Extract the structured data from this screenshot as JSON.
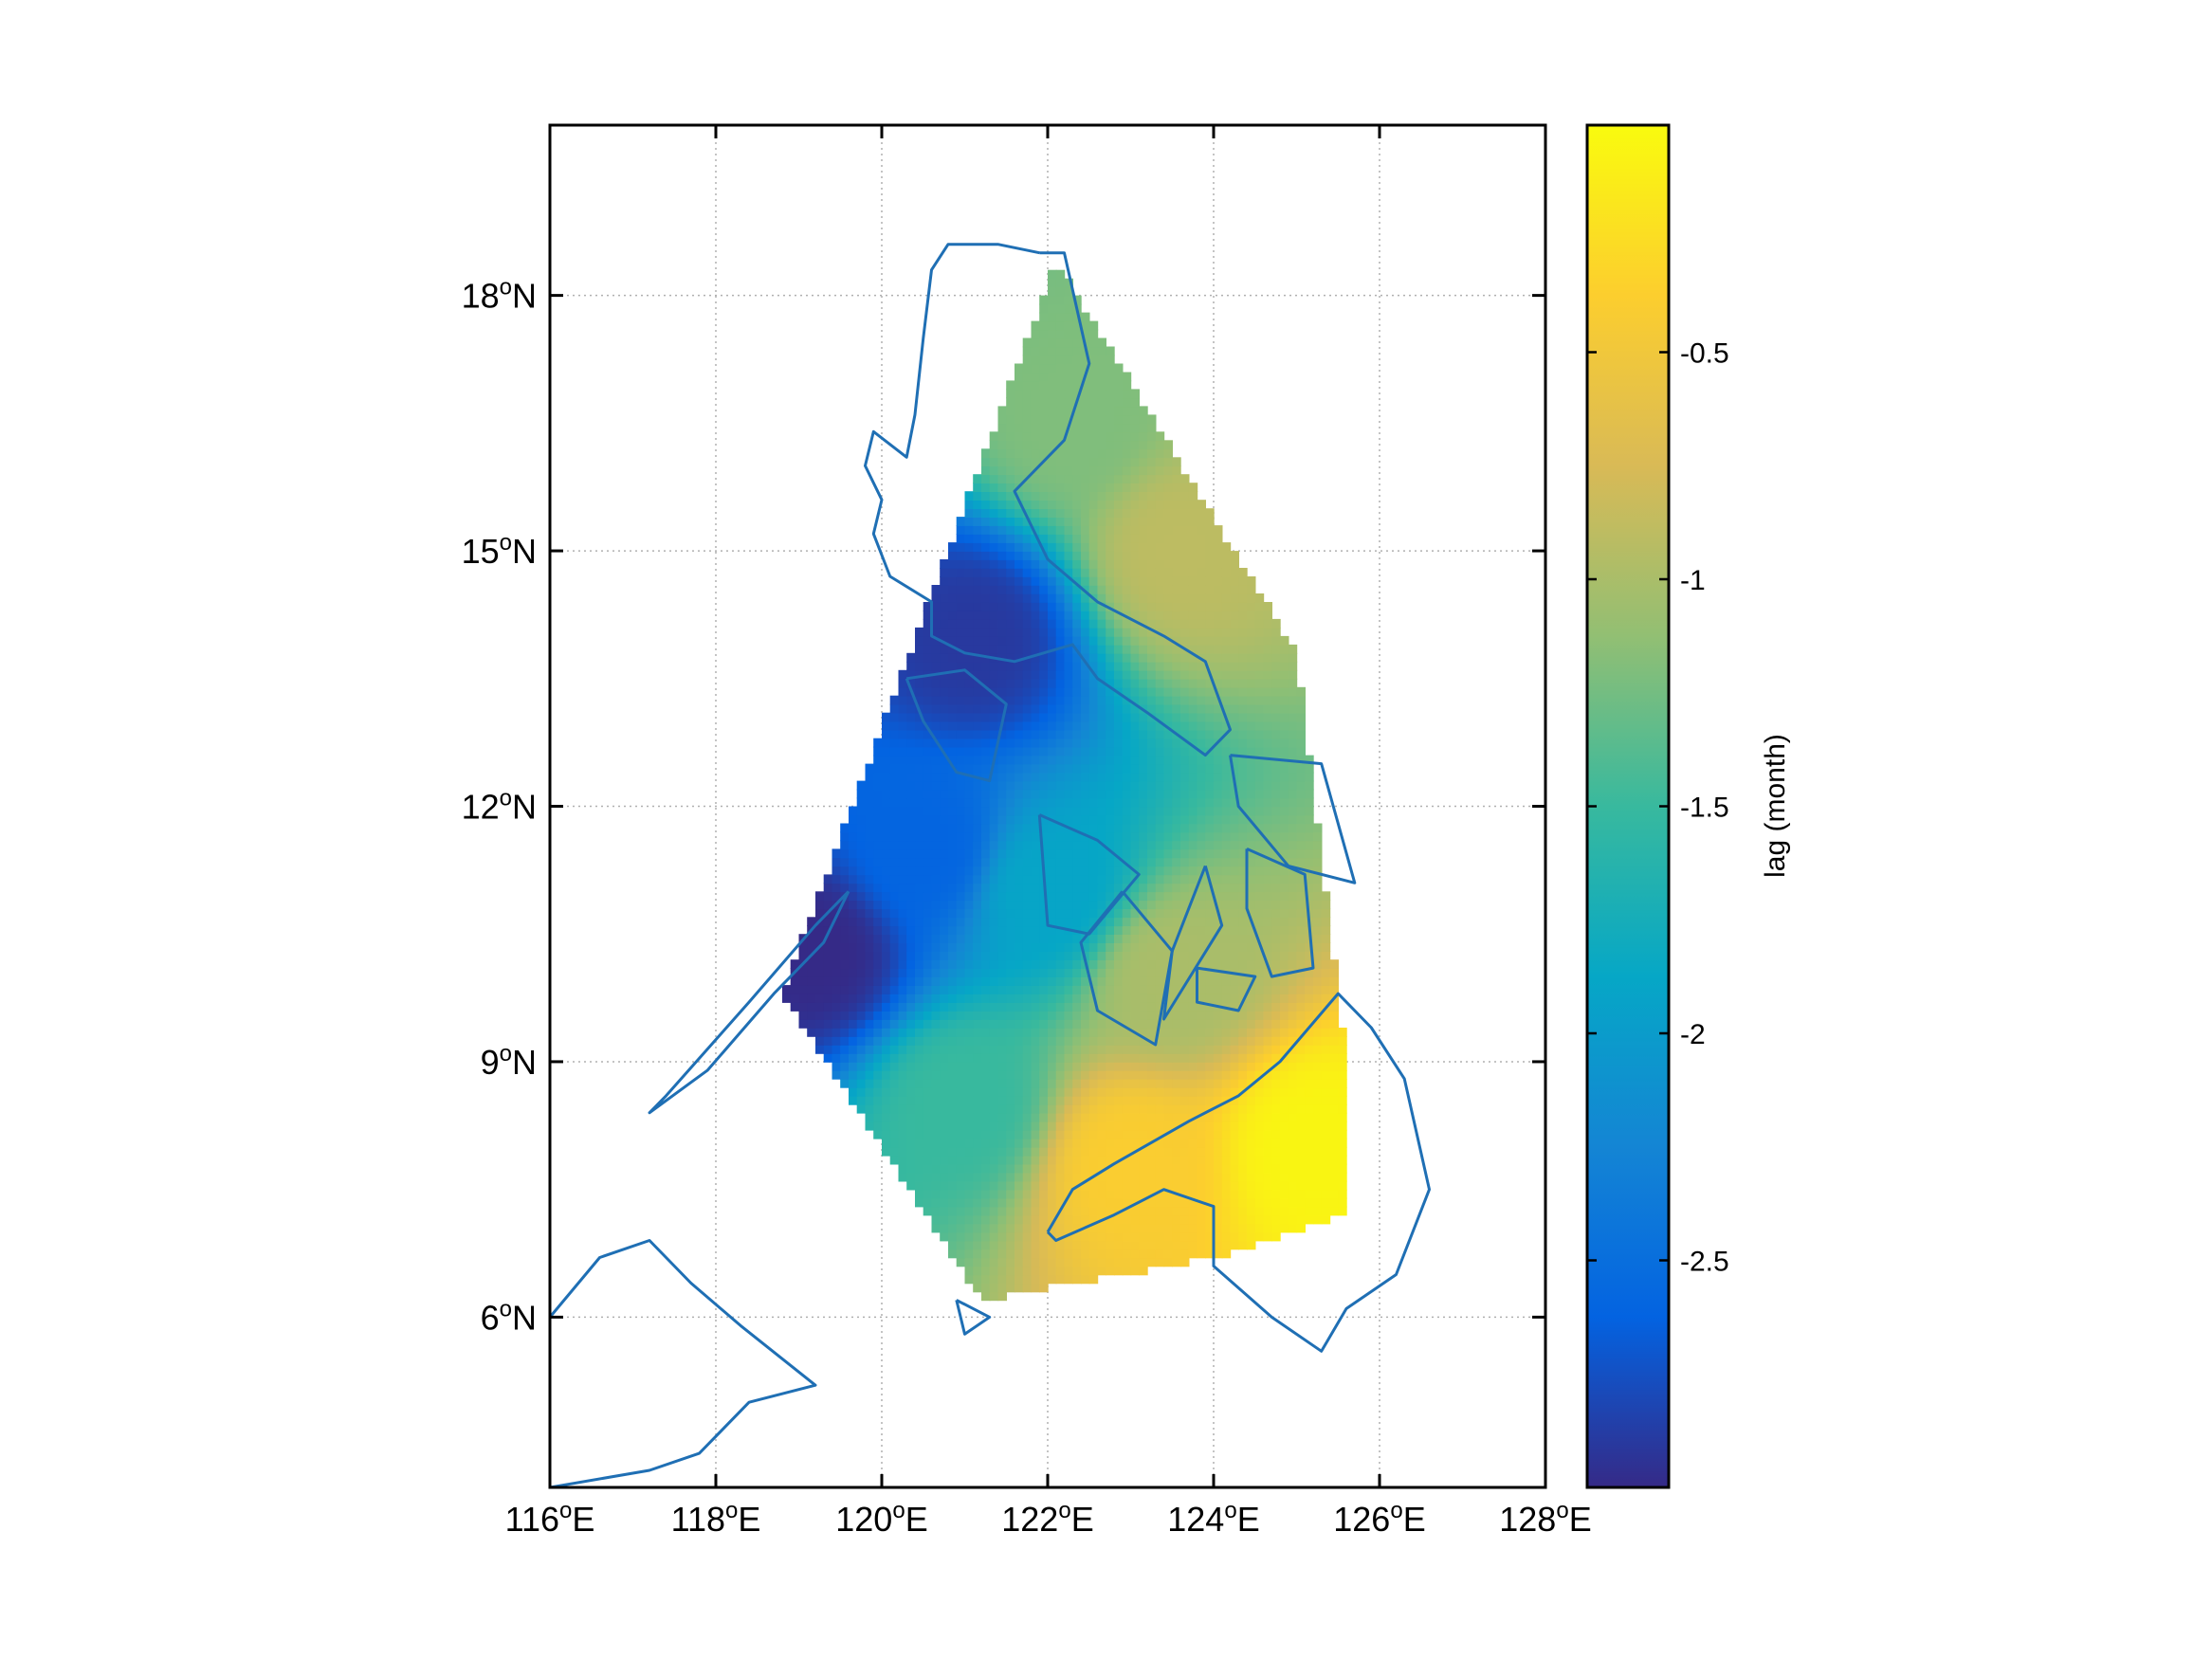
{
  "chart_data": {
    "type": "heatmap",
    "projection": "lat-lon map",
    "xlim": [
      116,
      128
    ],
    "ylim": [
      4,
      20
    ],
    "x_ticks": [
      116,
      118,
      120,
      122,
      124,
      126,
      128
    ],
    "y_ticks": [
      6,
      9,
      12,
      15,
      18
    ],
    "x_tick_labels": [
      {
        "num": "116",
        "suffix": "E"
      },
      {
        "num": "118",
        "suffix": "E"
      },
      {
        "num": "120",
        "suffix": "E"
      },
      {
        "num": "122",
        "suffix": "E"
      },
      {
        "num": "124",
        "suffix": "E"
      },
      {
        "num": "126",
        "suffix": "E"
      },
      {
        "num": "128",
        "suffix": "E"
      }
    ],
    "y_tick_labels": [
      {
        "num": "6",
        "suffix": "N"
      },
      {
        "num": "9",
        "suffix": "N"
      },
      {
        "num": "12",
        "suffix": "N"
      },
      {
        "num": "15",
        "suffix": "N"
      },
      {
        "num": "18",
        "suffix": "N"
      }
    ],
    "degree_symbol": "o",
    "grid": true,
    "field_region": [
      [
        122.1,
        18.4
      ],
      [
        125.0,
        13.8
      ],
      [
        125.6,
        9.0
      ],
      [
        125.6,
        7.2
      ],
      [
        124.0,
        6.7
      ],
      [
        121.2,
        6.2
      ],
      [
        118.8,
        9.8
      ],
      [
        122.1,
        18.4
      ]
    ],
    "field_samples": [
      {
        "lon": 121.1,
        "lat": 14.0,
        "lag": -2.9
      },
      {
        "lon": 119.2,
        "lat": 10.3,
        "lag": -3.0
      },
      {
        "lon": 120.5,
        "lat": 11.5,
        "lag": -2.6
      },
      {
        "lon": 122.3,
        "lat": 16.5,
        "lag": -1.2
      },
      {
        "lon": 123.6,
        "lat": 15.0,
        "lag": -0.9
      },
      {
        "lon": 122.0,
        "lat": 11.0,
        "lag": -1.9
      },
      {
        "lon": 121.0,
        "lat": 8.5,
        "lag": -1.5
      },
      {
        "lon": 123.5,
        "lat": 10.0,
        "lag": -1.0
      },
      {
        "lon": 123.0,
        "lat": 7.8,
        "lag": -0.4
      },
      {
        "lon": 125.2,
        "lat": 8.0,
        "lag": -0.05
      }
    ],
    "colorbar": {
      "label": "lag (month)",
      "range": [
        -3.0,
        0.0
      ],
      "ticks": [
        -2.5,
        -2,
        -1.5,
        -1,
        -0.5
      ],
      "tick_labels": [
        "-2.5",
        "-2",
        "-1.5",
        "-1",
        "-0.5"
      ],
      "colormap": [
        "#352a87",
        "#0363e1",
        "#1485d4",
        "#06a7c6",
        "#38b99e",
        "#92bf73",
        "#d9ba56",
        "#fcce2e",
        "#f9fb0e"
      ]
    },
    "coastline_color": "#1f6fb4"
  }
}
